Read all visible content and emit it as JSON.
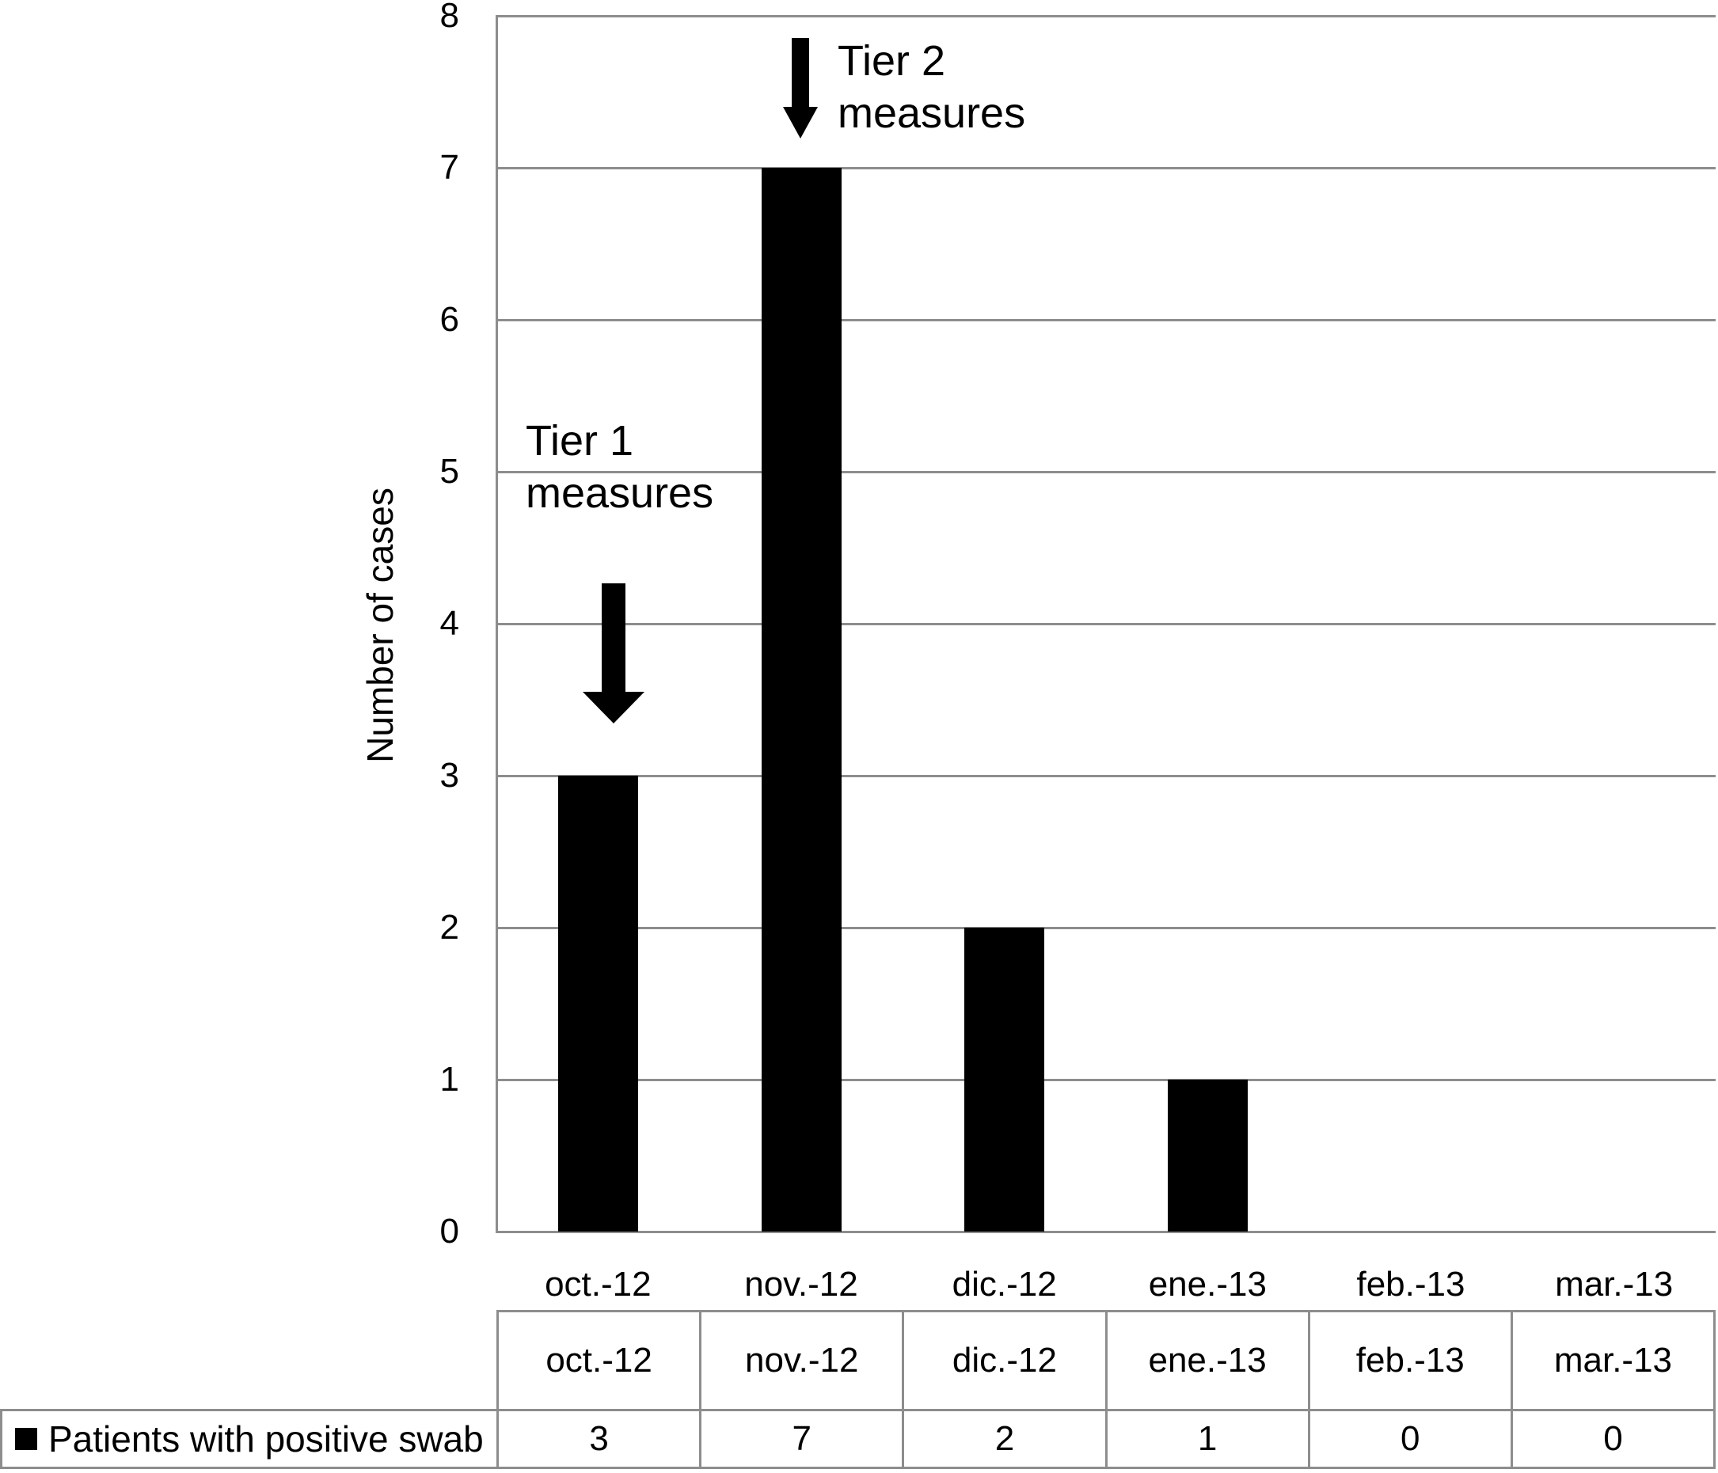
{
  "chart_data": {
    "type": "bar",
    "title": "",
    "categories": [
      "oct.-12",
      "nov.-12",
      "dic.-12",
      "ene.-13",
      "feb.-13",
      "mar.-13"
    ],
    "series": [
      {
        "name": "Patients with positive swab",
        "values": [
          3,
          7,
          2,
          1,
          0,
          0
        ],
        "color": "#000000"
      }
    ],
    "xlabel": "",
    "ylabel": "Number of cases",
    "ylim": [
      0,
      8
    ],
    "yticks": [
      8,
      7,
      6,
      5,
      4,
      3,
      2,
      1,
      0
    ],
    "grid": true,
    "legend_position": "bottom-table-left",
    "annotations": [
      {
        "text": "Tier 1 measures",
        "lines": [
          "Tier 1",
          "measures"
        ],
        "arrow": "down",
        "target_category": "oct.-12"
      },
      {
        "text": "Tier 2 measures",
        "lines": [
          "Tier 2",
          "measures"
        ],
        "arrow": "down",
        "target_category": "nov.-12"
      }
    ],
    "data_table": {
      "month_row": [
        "oct.-12",
        "nov.-12",
        "dic.-12",
        "ene.-13",
        "feb.-13",
        "mar.-13"
      ],
      "rows": [
        {
          "label": "Patients with positive swab",
          "values": [
            "3",
            "7",
            "2",
            "1",
            "0",
            "0"
          ]
        }
      ]
    }
  },
  "colors": {
    "bar": "#000000",
    "grid": "#8d8d8d",
    "table_border": "#8d8d8d",
    "text": "#000000",
    "background": "#ffffff"
  }
}
